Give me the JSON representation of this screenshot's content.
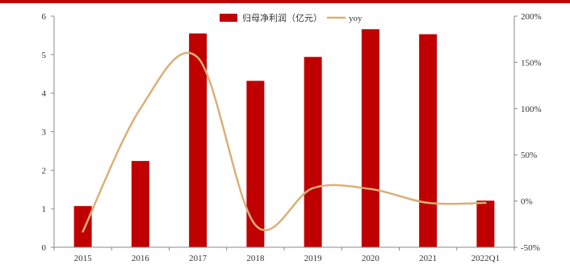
{
  "chart_data": {
    "type": "bar",
    "categories": [
      "2015",
      "2016",
      "2017",
      "2018",
      "2019",
      "2020",
      "2021",
      "2022Q1"
    ],
    "series": [
      {
        "name": "归母净利润（亿元）",
        "type": "bar",
        "axis": "left",
        "color": "#c00000",
        "values": [
          1.07,
          2.24,
          5.55,
          4.32,
          4.94,
          5.66,
          5.53,
          1.21
        ]
      },
      {
        "name": "yoy",
        "type": "line",
        "axis": "right",
        "color": "#d9b077",
        "unit": "%",
        "values": [
          -33,
          100,
          155,
          -26,
          14,
          13,
          -2,
          -2
        ]
      }
    ],
    "ylim_left": [
      0,
      6
    ],
    "yticks_left": [
      "0",
      "1",
      "2",
      "3",
      "4",
      "5",
      "6"
    ],
    "ylim_right": [
      -50,
      200
    ],
    "yticks_right": [
      "-50%",
      "0%",
      "50%",
      "100%",
      "150%",
      "200%"
    ],
    "legend": "top-center",
    "grid": false
  },
  "colors": {
    "accent_rule": "#c00000"
  }
}
